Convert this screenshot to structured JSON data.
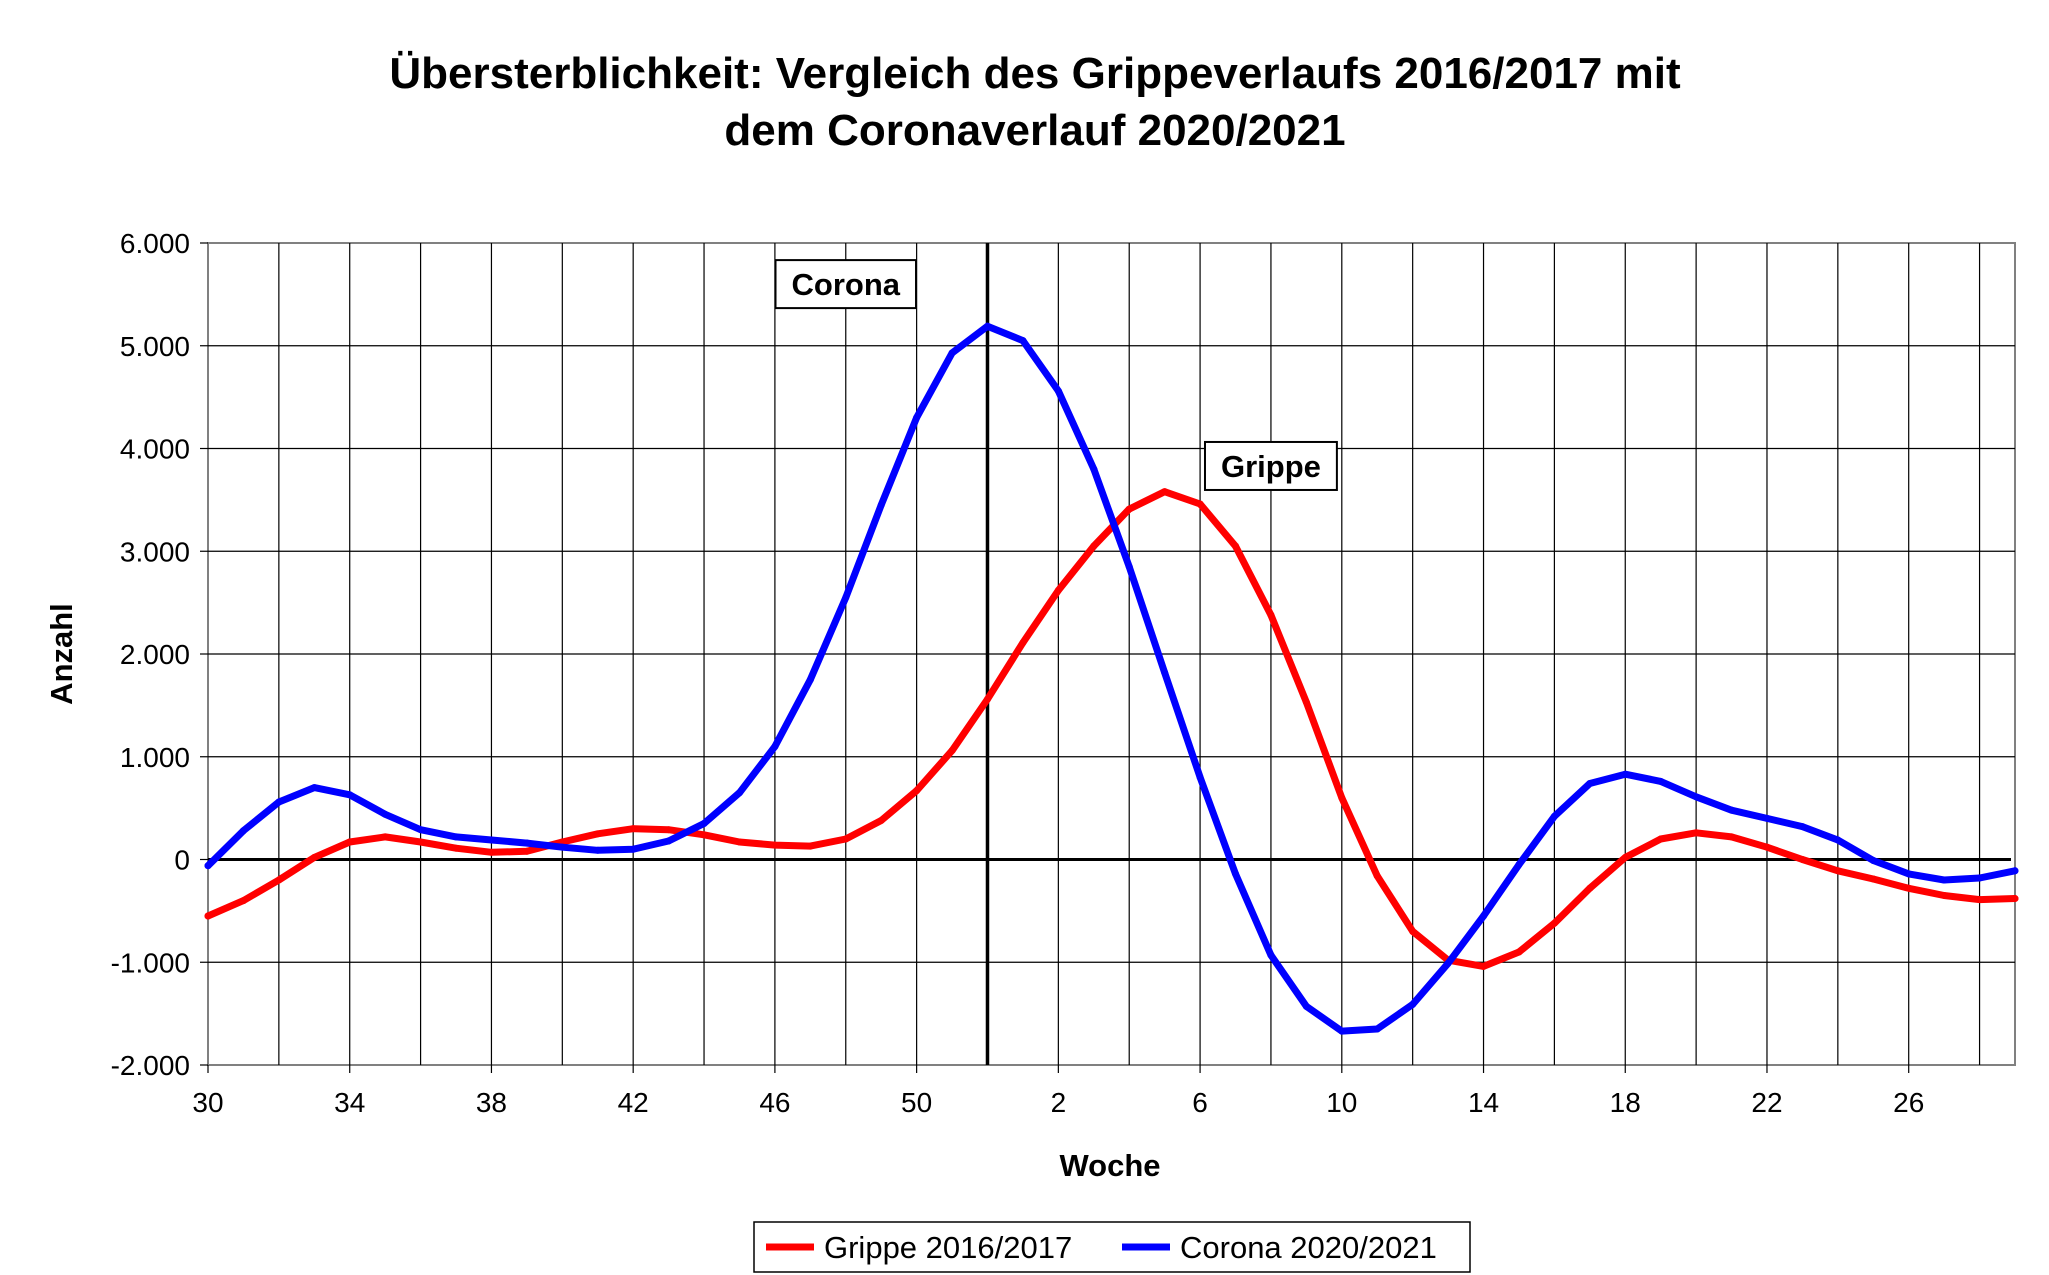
{
  "chart_data": {
    "type": "line",
    "title_lines": [
      "Übersterblichkeit: Vergleich des Grippeverlaufs 2016/2017 mit",
      "dem Coronaverlauf 2020/2021"
    ],
    "xlabel": "Woche",
    "ylabel": "Anzahl",
    "ylim": [
      -2000,
      6000
    ],
    "ytick_values": [
      -2000,
      -1000,
      0,
      1000,
      2000,
      3000,
      4000,
      5000,
      6000
    ],
    "ytick_labels": [
      "-2.000",
      "-1.000",
      "0",
      "1.000",
      "2.000",
      "3.000",
      "4.000",
      "5.000",
      "6.000"
    ],
    "x_weeks": [
      30,
      31,
      32,
      33,
      34,
      35,
      36,
      37,
      38,
      39,
      40,
      41,
      42,
      43,
      44,
      45,
      46,
      47,
      48,
      49,
      50,
      51,
      52,
      1,
      2,
      3,
      4,
      5,
      6,
      7,
      8,
      9,
      10,
      11,
      12,
      13,
      14,
      15,
      16,
      17,
      18,
      19,
      20,
      21,
      22,
      23,
      24,
      25,
      26,
      27,
      28,
      29
    ],
    "xtick_labels": [
      "30",
      "34",
      "38",
      "42",
      "46",
      "50",
      "2",
      "6",
      "10",
      "14",
      "18",
      "22",
      "26"
    ],
    "xtick_weeks": [
      30,
      34,
      38,
      42,
      46,
      50,
      2,
      6,
      10,
      14,
      18,
      22,
      26
    ],
    "grid": true,
    "legend_position": "bottom",
    "series": [
      {
        "name": "Grippe 2016/2017",
        "color": "#ff0000",
        "values": [
          -550,
          -400,
          -200,
          20,
          170,
          220,
          170,
          110,
          70,
          80,
          170,
          250,
          300,
          290,
          240,
          170,
          140,
          130,
          200,
          380,
          670,
          1060,
          1560,
          2110,
          2620,
          3050,
          3410,
          3580,
          3460,
          3050,
          2380,
          1530,
          600,
          -160,
          -700,
          -980,
          -1040,
          -900,
          -620,
          -280,
          20,
          200,
          260,
          220,
          120,
          0,
          -110,
          -190,
          -280,
          -350,
          -390,
          -380
        ]
      },
      {
        "name": "Corona 2020/2021",
        "color": "#0000ff",
        "values": [
          -60,
          280,
          560,
          700,
          630,
          440,
          290,
          220,
          190,
          160,
          120,
          90,
          100,
          180,
          350,
          650,
          1100,
          1750,
          2550,
          3450,
          4300,
          4930,
          5190,
          5050,
          4560,
          3800,
          2850,
          1820,
          800,
          -140,
          -930,
          -1430,
          -1670,
          -1650,
          -1410,
          -1010,
          -550,
          -50,
          420,
          740,
          830,
          760,
          610,
          480,
          400,
          320,
          190,
          -10,
          -140,
          -200,
          -180,
          -110
        ]
      }
    ],
    "annotations": [
      {
        "text": "Corona",
        "week_index": 18,
        "value": 5600
      },
      {
        "text": "Grippe",
        "week_index": 30,
        "value": 3830
      }
    ],
    "vertical_marker_week": 52
  }
}
